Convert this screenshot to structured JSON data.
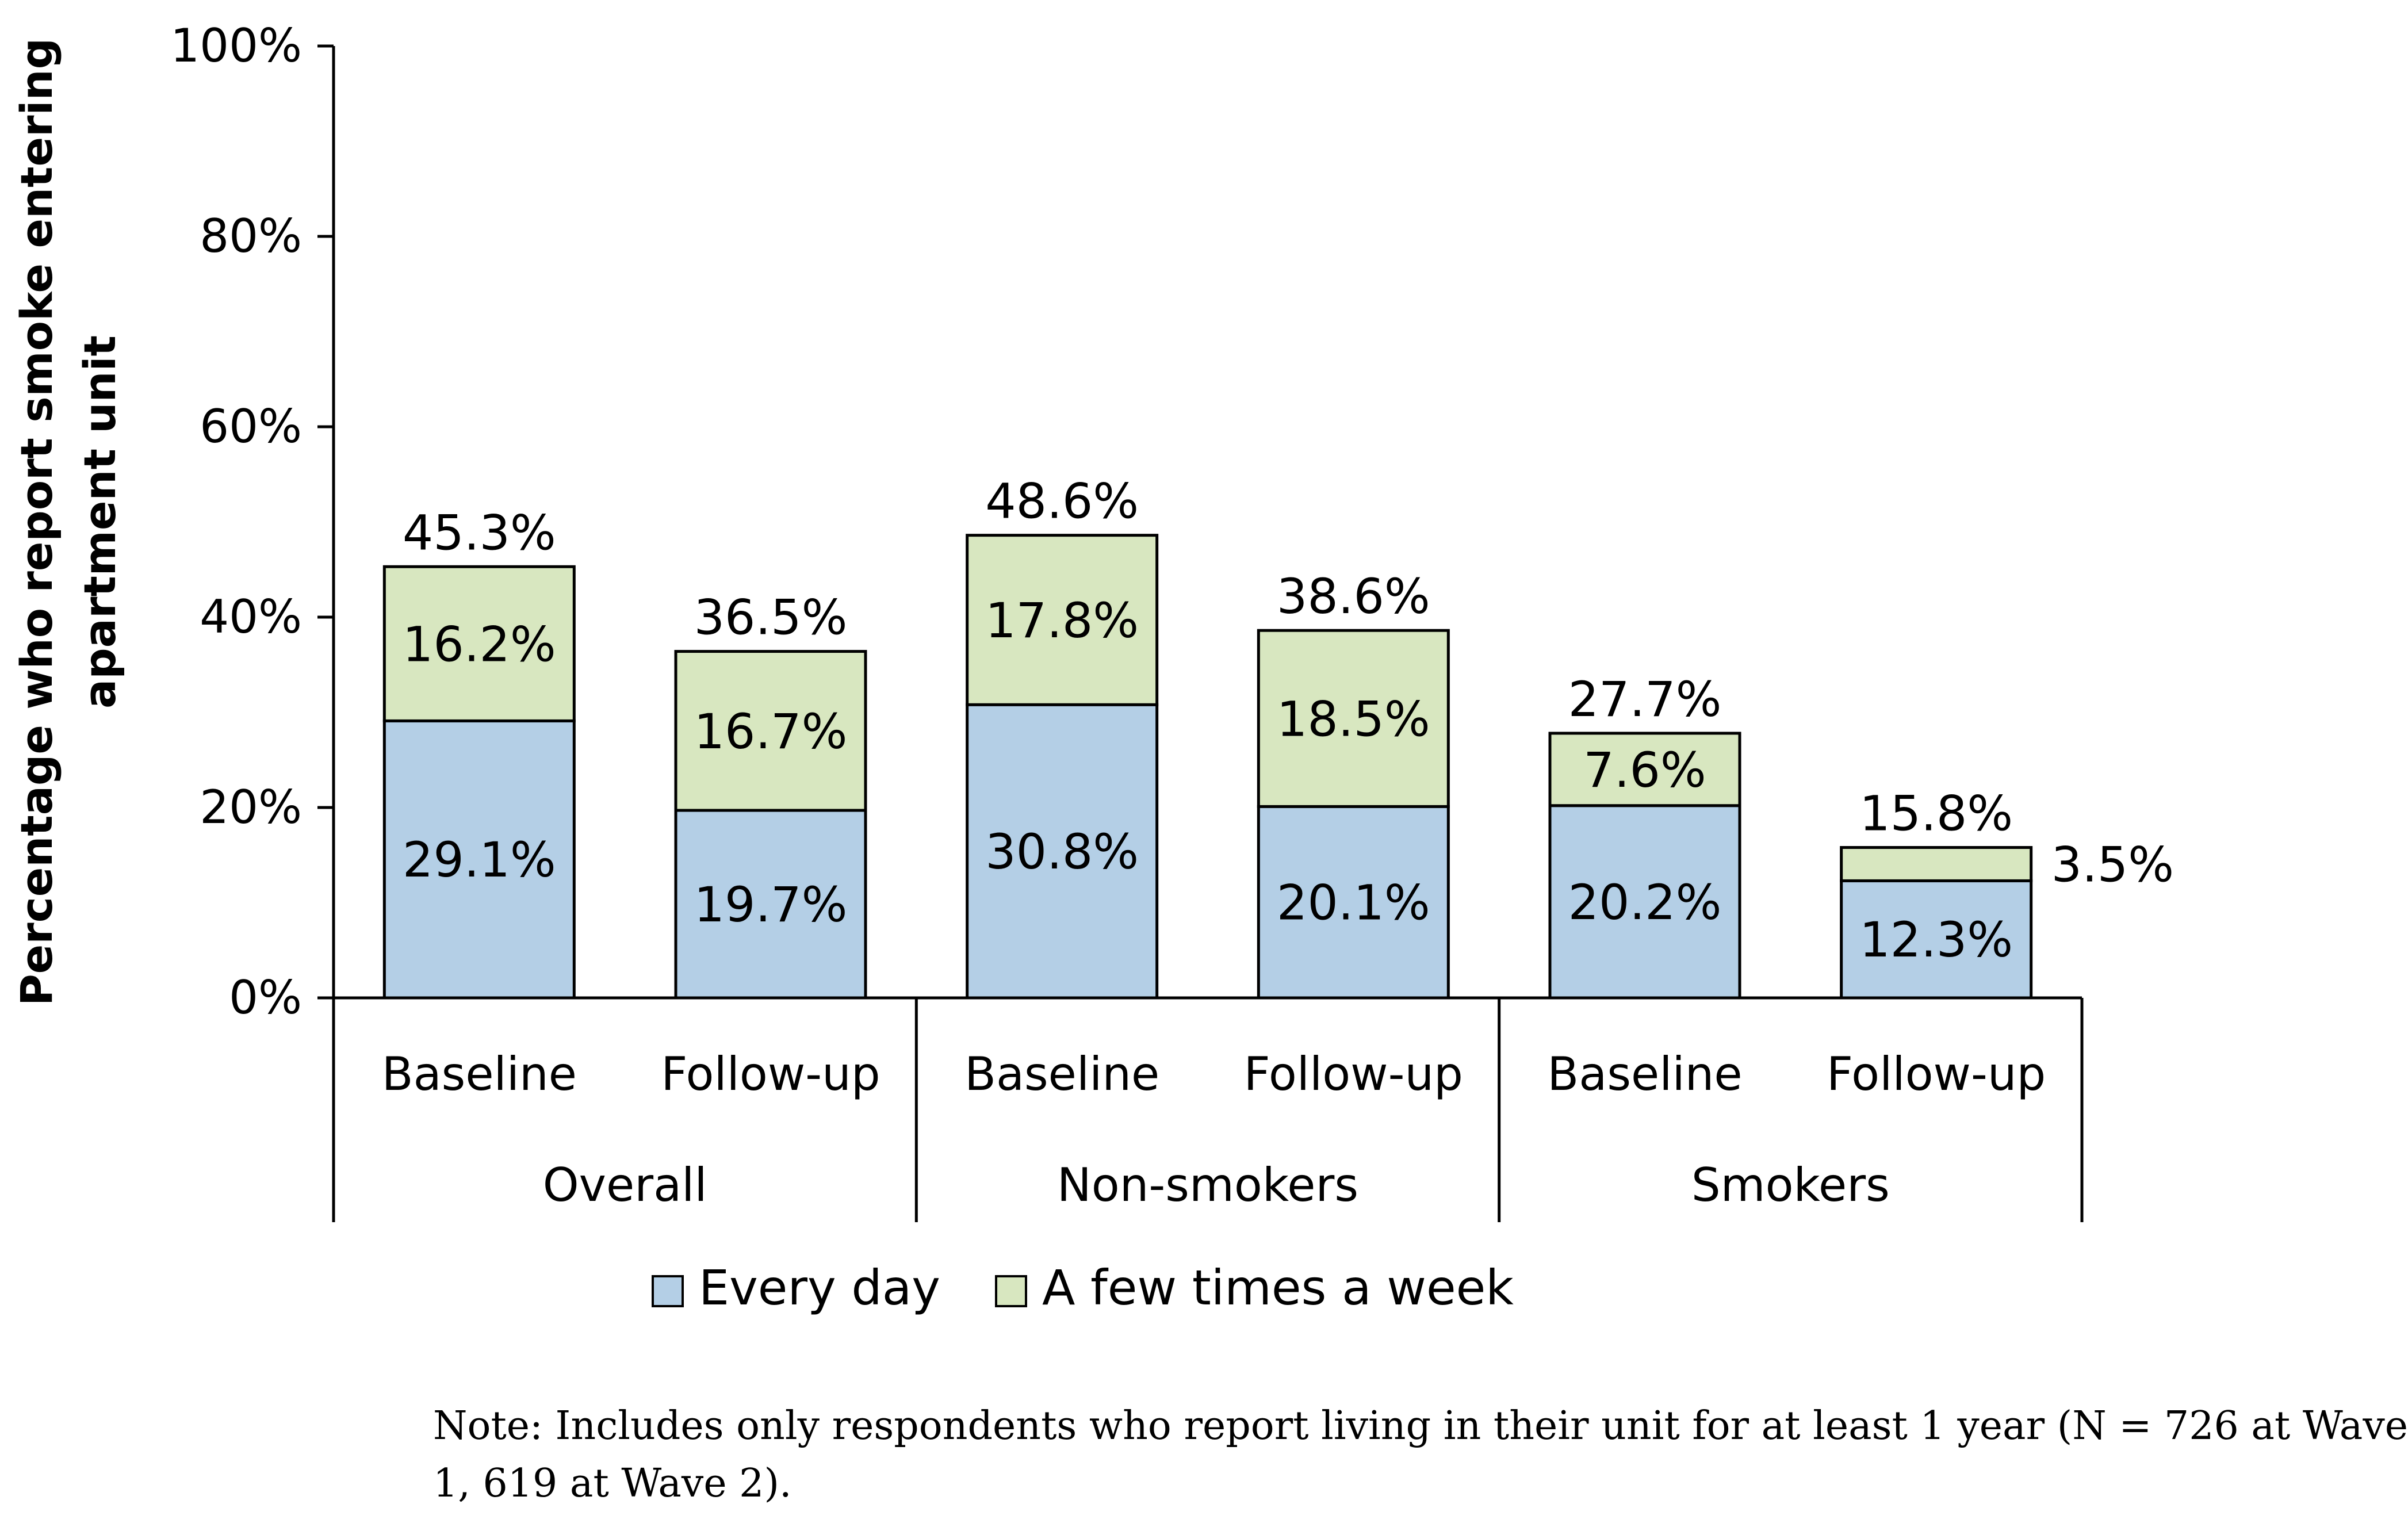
{
  "chart_data": {
    "type": "bar",
    "stacked": true,
    "ylabel_lines": [
      "Percentage who report smoke entering",
      "apartment unit"
    ],
    "ylim": [
      0,
      100
    ],
    "yticks": [
      "0%",
      "20%",
      "40%",
      "60%",
      "80%",
      "100%"
    ],
    "groups": [
      "Overall",
      "Non-smokers",
      "Smokers"
    ],
    "categories": [
      "Baseline",
      "Follow-up",
      "Baseline",
      "Follow-up",
      "Baseline",
      "Follow-up"
    ],
    "series": [
      {
        "name": "Every day",
        "color": "#b4cfe6",
        "values": [
          29.1,
          19.7,
          30.8,
          20.1,
          20.2,
          12.3
        ],
        "labels": [
          "29.1%",
          "19.7%",
          "30.8%",
          "20.1%",
          "20.2%",
          "12.3%"
        ]
      },
      {
        "name": "A few times a week",
        "color": "#d8e7c0",
        "values": [
          16.2,
          16.7,
          17.8,
          18.5,
          7.6,
          3.5
        ],
        "labels": [
          "16.2%",
          "16.7%",
          "17.8%",
          "18.5%",
          "7.6%",
          "3.5%"
        ]
      }
    ],
    "totals": [
      45.3,
      36.5,
      48.6,
      38.6,
      27.7,
      15.8
    ],
    "total_labels": [
      "45.3%",
      "36.5%",
      "48.6%",
      "38.6%",
      "27.7%",
      "15.8%"
    ],
    "legend": [
      "Every day",
      "A few times a week"
    ],
    "legend_position": "bottom"
  },
  "note": {
    "line1": "Note: Includes only respondents who report living in their unit for at least 1 year (N = 726 at Wave",
    "line2": "1, 619 at Wave 2)."
  }
}
